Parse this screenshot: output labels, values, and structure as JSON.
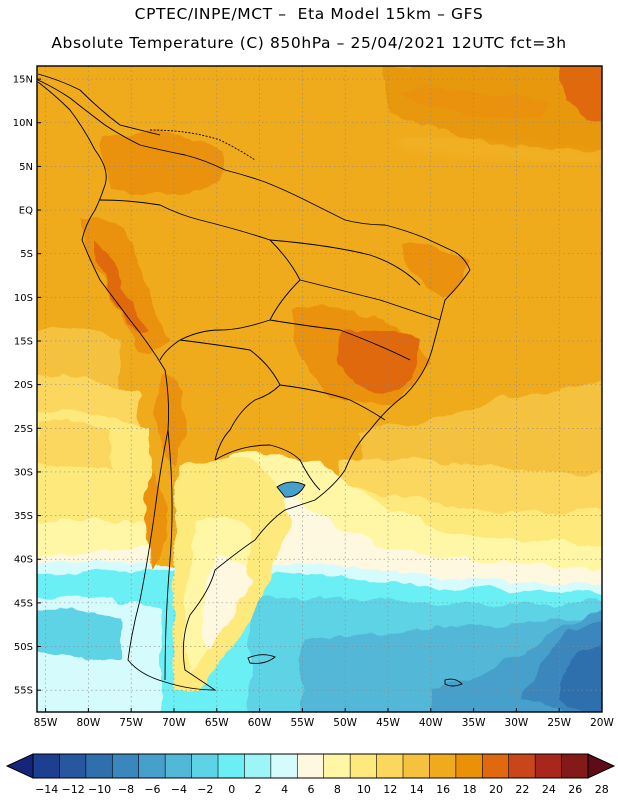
{
  "header": {
    "line1": "CPTEC/INPE/MCT –  Eta Model 15km – GFS",
    "line2": "Absolute Temperature (C) 850hPa – 25/04/2021 12UTC fct=3h"
  },
  "map": {
    "lat_labels": [
      "15N",
      "10N",
      "5N",
      "EQ",
      "5S",
      "10S",
      "15S",
      "20S",
      "25S",
      "30S",
      "35S",
      "40S",
      "45S",
      "50S",
      "55S"
    ],
    "lon_labels": [
      "85W",
      "80W",
      "75W",
      "70W",
      "65W",
      "60W",
      "55W",
      "50W",
      "45W",
      "40W",
      "35W",
      "30W",
      "25W",
      "20W"
    ],
    "extent": {
      "lon_min": -86,
      "lon_max": -20,
      "lat_min": -57.5,
      "lat_max": 16.5
    }
  },
  "colorbar": {
    "ticks": [
      "-14",
      "-12",
      "-10",
      "-8",
      "-6",
      "-4",
      "-2",
      "0",
      "2",
      "4",
      "6",
      "8",
      "10",
      "12",
      "14",
      "16",
      "18",
      "20",
      "22",
      "24",
      "26",
      "28"
    ],
    "colors": [
      "#1c3f8f",
      "#26579f",
      "#2f6fae",
      "#3a87bd",
      "#46a0cb",
      "#52b8d8",
      "#5ed3e6",
      "#6beff4",
      "#9df5f8",
      "#d6fbfd",
      "#fff8e0",
      "#fff7a6",
      "#feea7c",
      "#fbd75e",
      "#f5c23f",
      "#f0ab1c",
      "#ea9108",
      "#e06910",
      "#c9461a",
      "#a8261c",
      "#84191a"
    ],
    "low_end": "#16257a",
    "high_end": "#5e0c18",
    "unit": "Absolute Temperature (C)"
  }
}
